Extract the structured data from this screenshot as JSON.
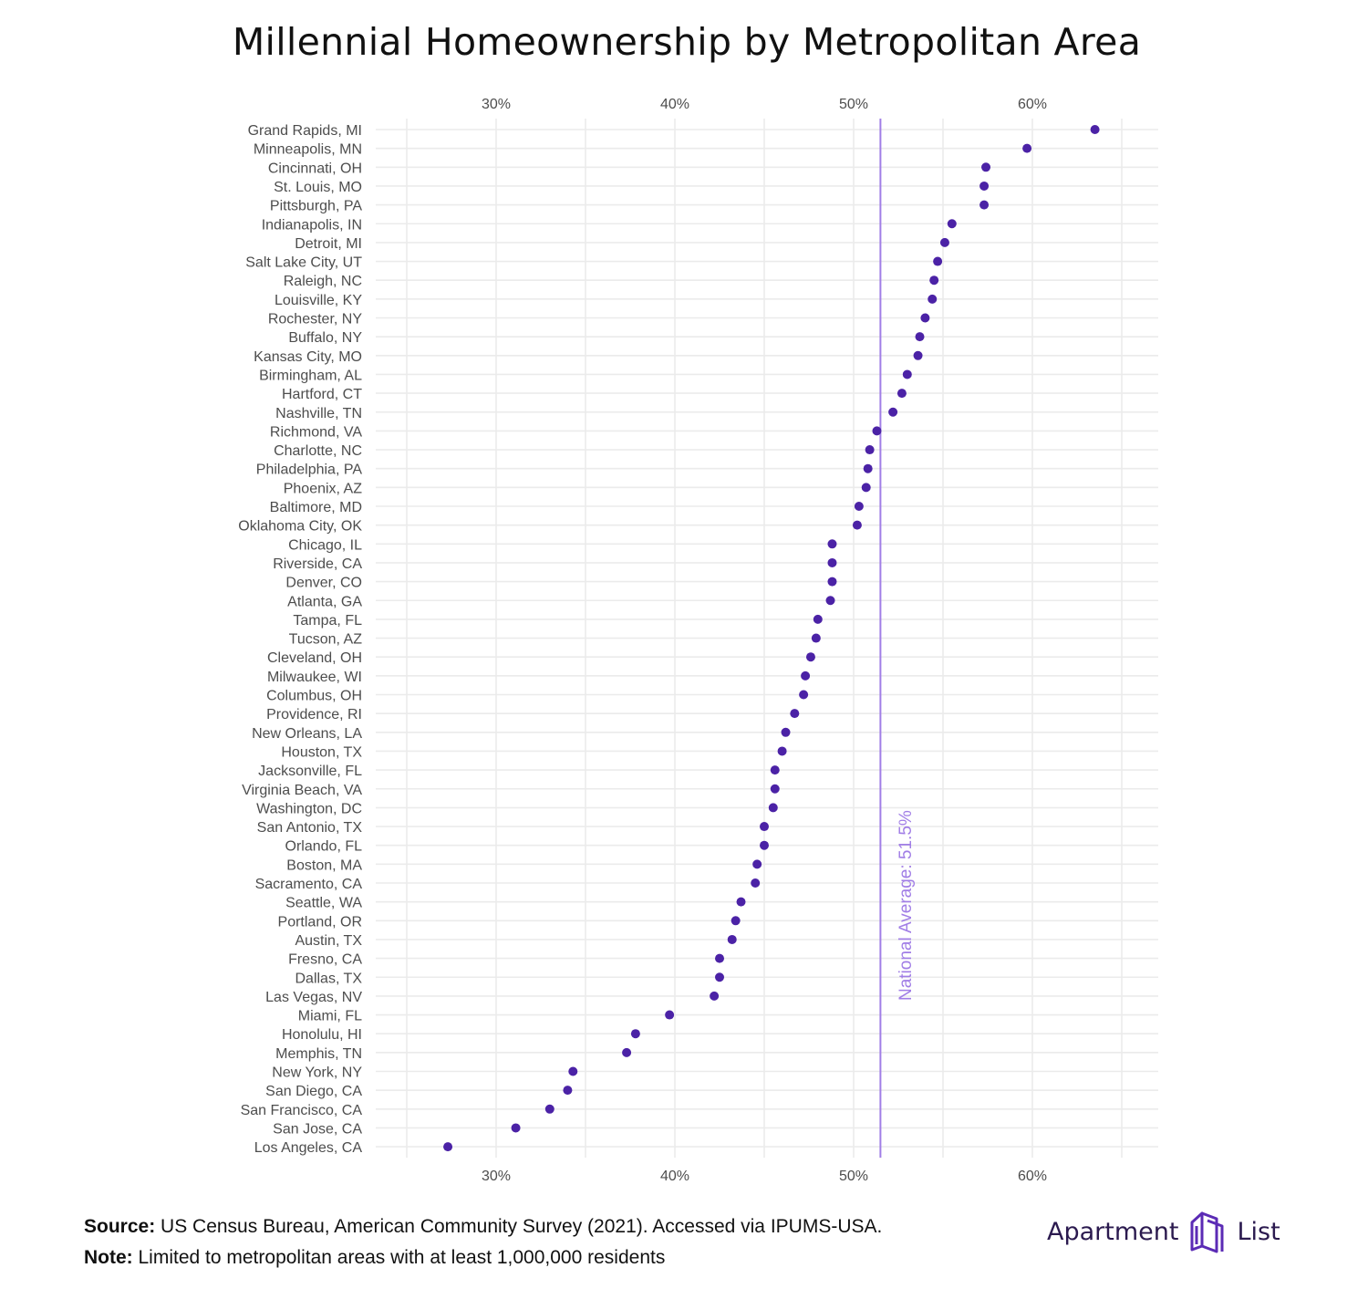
{
  "title": "Millennial Homeownership by Metropolitan Area",
  "chart_data": {
    "type": "scatter",
    "title": "Millennial Homeownership by Metropolitan Area",
    "xlabel": "",
    "ylabel": "",
    "x_range": [
      0.24,
      0.67
    ],
    "x_ticks": [
      0.3,
      0.4,
      0.5,
      0.6
    ],
    "x_tick_labels": [
      "30%",
      "40%",
      "50%",
      "60%"
    ],
    "x_axis_position": "top and bottom",
    "grid": true,
    "point_color": "#4b22a6",
    "reference_line": {
      "value": 0.515,
      "label": "National Average: 51.5%",
      "color": "#a17ee6"
    },
    "categories": [
      "Grand Rapids, MI",
      "Minneapolis, MN",
      "Cincinnati, OH",
      "St. Louis, MO",
      "Pittsburgh, PA",
      "Indianapolis, IN",
      "Detroit, MI",
      "Salt Lake City, UT",
      "Raleigh, NC",
      "Louisville, KY",
      "Rochester, NY",
      "Buffalo, NY",
      "Kansas City, MO",
      "Birmingham, AL",
      "Hartford, CT",
      "Nashville, TN",
      "Richmond, VA",
      "Charlotte, NC",
      "Philadelphia, PA",
      "Phoenix, AZ",
      "Baltimore, MD",
      "Oklahoma City, OK",
      "Chicago, IL",
      "Riverside, CA",
      "Denver, CO",
      "Atlanta, GA",
      "Tampa, FL",
      "Tucson, AZ",
      "Cleveland, OH",
      "Milwaukee, WI",
      "Columbus, OH",
      "Providence, RI",
      "New Orleans, LA",
      "Houston, TX",
      "Jacksonville, FL",
      "Virginia Beach, VA",
      "Washington, DC",
      "San Antonio, TX",
      "Orlando, FL",
      "Boston, MA",
      "Sacramento, CA",
      "Seattle, WA",
      "Portland, OR",
      "Austin, TX",
      "Fresno, CA",
      "Dallas, TX",
      "Las Vegas, NV",
      "Miami, FL",
      "Honolulu, HI",
      "Memphis, TN",
      "New York, NY",
      "San Diego, CA",
      "San Francisco, CA",
      "San Jose, CA",
      "Los Angeles, CA"
    ],
    "values": [
      0.635,
      0.597,
      0.574,
      0.573,
      0.573,
      0.555,
      0.551,
      0.547,
      0.545,
      0.544,
      0.54,
      0.537,
      0.536,
      0.53,
      0.527,
      0.522,
      0.513,
      0.509,
      0.508,
      0.507,
      0.503,
      0.502,
      0.488,
      0.488,
      0.488,
      0.487,
      0.48,
      0.479,
      0.476,
      0.473,
      0.472,
      0.467,
      0.462,
      0.46,
      0.456,
      0.456,
      0.455,
      0.45,
      0.45,
      0.446,
      0.445,
      0.437,
      0.434,
      0.432,
      0.425,
      0.425,
      0.422,
      0.397,
      0.378,
      0.373,
      0.343,
      0.34,
      0.33,
      0.311,
      0.273
    ]
  },
  "footer": {
    "source_label": "Source:",
    "source_text": " US Census Bureau, American Community Survey (2021). Accessed via IPUMS-USA.",
    "note_label": "Note:",
    "note_text": " Limited to metropolitan areas with at least 1,000,000 residents"
  },
  "brand": {
    "word1": "Apartment",
    "word2": "List",
    "logo_icon": "apartment-list-logo-icon",
    "color": "#2b1a4f"
  }
}
